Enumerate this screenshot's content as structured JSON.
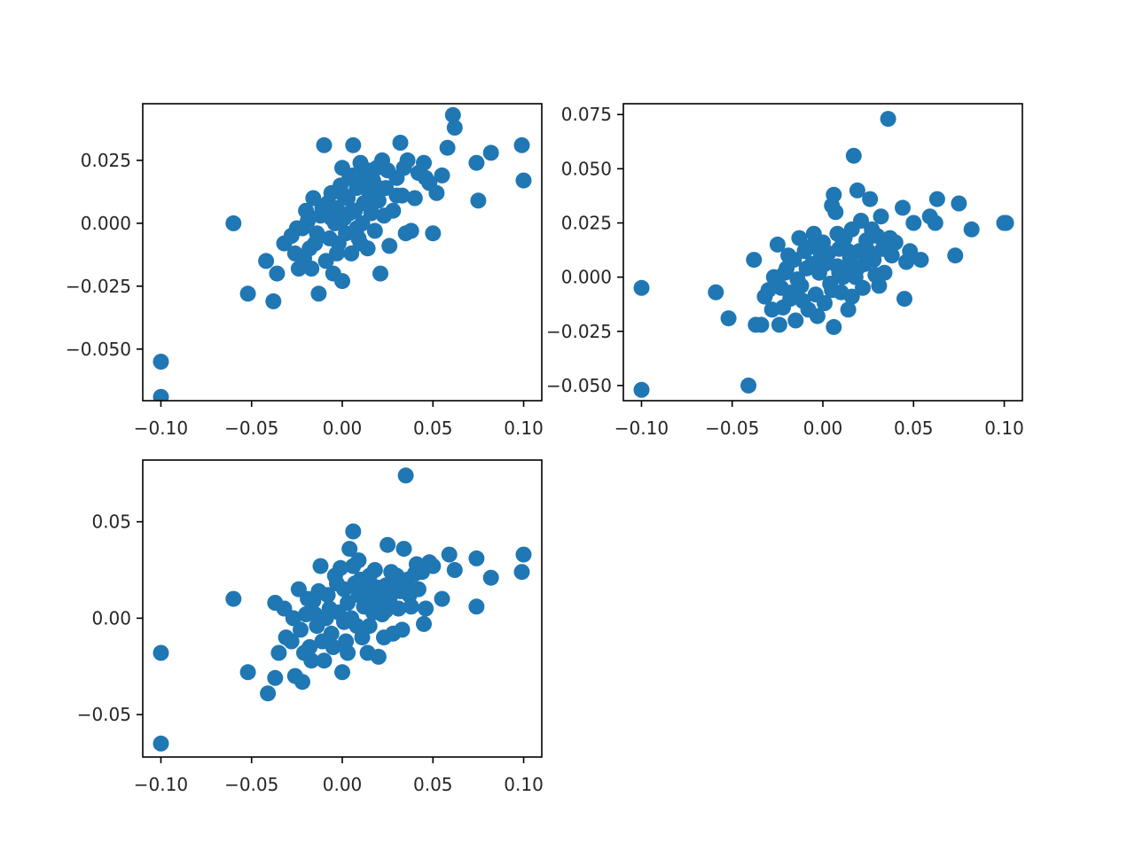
{
  "figure": {
    "background": "#ffffff"
  },
  "chart_data": [
    {
      "type": "scatter",
      "marker_color": "#1f77b4",
      "title": "",
      "xlabel": "",
      "ylabel": "",
      "xlim": [
        -0.11,
        0.11
      ],
      "ylim": [
        -0.0705,
        0.0475
      ],
      "xticks": [
        -0.1,
        -0.05,
        0.0,
        0.05,
        0.1
      ],
      "xtick_labels": [
        "−0.10",
        "−0.05",
        "0.00",
        "0.05",
        "0.10"
      ],
      "yticks": [
        -0.05,
        -0.025,
        0.0,
        0.025
      ],
      "ytick_labels": [
        "−0.050",
        "−0.025",
        "0.000",
        "0.025"
      ],
      "grid": false,
      "legend": false,
      "points": [
        [
          -0.1,
          -0.055
        ],
        [
          -0.1,
          -0.069
        ],
        [
          -0.06,
          0.0
        ],
        [
          -0.052,
          -0.028
        ],
        [
          -0.042,
          -0.015
        ],
        [
          -0.038,
          -0.031
        ],
        [
          -0.036,
          -0.02
        ],
        [
          -0.032,
          -0.008
        ],
        [
          -0.028,
          -0.005
        ],
        [
          -0.026,
          -0.012
        ],
        [
          -0.024,
          -0.018
        ],
        [
          -0.022,
          -0.002
        ],
        [
          -0.02,
          0.005
        ],
        [
          -0.018,
          -0.01
        ],
        [
          -0.016,
          0.01
        ],
        [
          -0.014,
          -0.004
        ],
        [
          -0.013,
          -0.028
        ],
        [
          -0.012,
          0.003
        ],
        [
          -0.01,
          0.031
        ],
        [
          -0.009,
          -0.015
        ],
        [
          -0.008,
          0.008
        ],
        [
          -0.007,
          -0.006
        ],
        [
          -0.006,
          0.012
        ],
        [
          -0.005,
          -0.02
        ],
        [
          -0.004,
          0.0
        ],
        [
          -0.003,
          0.006
        ],
        [
          -0.002,
          -0.008
        ],
        [
          -0.001,
          0.015
        ],
        [
          0.0,
          0.022
        ],
        [
          0.0,
          -0.023
        ],
        [
          0.001,
          0.002
        ],
        [
          0.002,
          -0.004
        ],
        [
          0.003,
          0.01
        ],
        [
          0.004,
          0.018
        ],
        [
          0.005,
          -0.012
        ],
        [
          0.006,
          0.031
        ],
        [
          0.007,
          0.005
        ],
        [
          0.008,
          0.014
        ],
        [
          0.009,
          -0.006
        ],
        [
          0.01,
          0.024
        ],
        [
          0.011,
          0.0
        ],
        [
          0.012,
          0.008
        ],
        [
          0.013,
          0.02
        ],
        [
          0.014,
          -0.01
        ],
        [
          0.015,
          0.012
        ],
        [
          0.016,
          0.004
        ],
        [
          0.017,
          0.017
        ],
        [
          0.018,
          -0.003
        ],
        [
          0.019,
          0.022
        ],
        [
          0.02,
          0.009
        ],
        [
          0.021,
          -0.02
        ],
        [
          0.022,
          0.025
        ],
        [
          0.024,
          0.014
        ],
        [
          0.026,
          -0.009
        ],
        [
          0.028,
          0.005
        ],
        [
          0.03,
          0.018
        ],
        [
          0.032,
          0.032
        ],
        [
          0.033,
          0.011
        ],
        [
          0.034,
          0.022
        ],
        [
          0.035,
          -0.004
        ],
        [
          0.036,
          0.025
        ],
        [
          0.038,
          -0.003
        ],
        [
          0.04,
          0.01
        ],
        [
          0.042,
          0.02
        ],
        [
          0.045,
          0.024
        ],
        [
          0.046,
          0.018
        ],
        [
          0.048,
          0.016
        ],
        [
          0.05,
          -0.004
        ],
        [
          0.052,
          0.012
        ],
        [
          0.055,
          0.019
        ],
        [
          0.058,
          0.03
        ],
        [
          0.061,
          0.043
        ],
        [
          0.062,
          0.038
        ],
        [
          0.074,
          0.024
        ],
        [
          0.075,
          0.009
        ],
        [
          0.082,
          0.028
        ],
        [
          0.099,
          0.031
        ],
        [
          0.1,
          0.017
        ],
        [
          -0.025,
          -0.002
        ],
        [
          -0.019,
          0.001
        ],
        [
          -0.015,
          -0.008
        ],
        [
          -0.011,
          0.006
        ],
        [
          -0.006,
          0.002
        ],
        [
          0.004,
          0.004
        ],
        [
          0.008,
          -0.002
        ],
        [
          0.012,
          0.016
        ],
        [
          0.016,
          0.007
        ],
        [
          0.02,
          0.014
        ],
        [
          0.023,
          0.003
        ],
        [
          -0.021,
          -0.014
        ],
        [
          -0.017,
          -0.018
        ],
        [
          -0.009,
          0.004
        ],
        [
          -0.003,
          -0.012
        ],
        [
          0.001,
          0.011
        ],
        [
          0.006,
          0.019
        ],
        [
          0.01,
          -0.008
        ],
        [
          0.014,
          0.021
        ],
        [
          0.018,
          0.013
        ],
        [
          0.025,
          0.021
        ],
        [
          0.03,
          0.011
        ]
      ]
    },
    {
      "type": "scatter",
      "marker_color": "#1f77b4",
      "title": "",
      "xlabel": "",
      "ylabel": "",
      "xlim": [
        -0.11,
        0.11
      ],
      "ylim": [
        -0.057,
        0.08
      ],
      "xticks": [
        -0.1,
        -0.05,
        0.0,
        0.05,
        0.1
      ],
      "xtick_labels": [
        "−0.10",
        "−0.05",
        "0.00",
        "0.05",
        "0.10"
      ],
      "yticks": [
        -0.05,
        -0.025,
        0.0,
        0.025,
        0.05,
        0.075
      ],
      "ytick_labels": [
        "−0.050",
        "−0.025",
        "0.000",
        "0.025",
        "0.050",
        "0.075"
      ],
      "grid": false,
      "legend": false,
      "points": [
        [
          -0.1,
          -0.005
        ],
        [
          -0.1,
          -0.052
        ],
        [
          -0.059,
          -0.007
        ],
        [
          -0.052,
          -0.019
        ],
        [
          -0.041,
          -0.05
        ],
        [
          -0.038,
          0.008
        ],
        [
          -0.037,
          -0.022
        ],
        [
          -0.034,
          -0.022
        ],
        [
          -0.032,
          -0.009
        ],
        [
          -0.03,
          -0.006
        ],
        [
          -0.027,
          0.0
        ],
        [
          -0.025,
          0.015
        ],
        [
          -0.024,
          -0.022
        ],
        [
          -0.022,
          -0.014
        ],
        [
          -0.02,
          0.004
        ],
        [
          -0.018,
          -0.01
        ],
        [
          -0.016,
          0.008
        ],
        [
          -0.015,
          -0.02
        ],
        [
          -0.013,
          0.018
        ],
        [
          -0.012,
          -0.004
        ],
        [
          -0.01,
          0.012
        ],
        [
          -0.008,
          -0.015
        ],
        [
          -0.006,
          0.006
        ],
        [
          -0.005,
          0.02
        ],
        [
          -0.004,
          -0.008
        ],
        [
          -0.002,
          0.002
        ],
        [
          0.0,
          0.016
        ],
        [
          0.001,
          -0.012
        ],
        [
          0.002,
          0.009
        ],
        [
          0.004,
          -0.003
        ],
        [
          0.005,
          0.033
        ],
        [
          0.006,
          0.038
        ],
        [
          0.006,
          -0.023
        ],
        [
          0.007,
          0.03
        ],
        [
          0.008,
          0.005
        ],
        [
          0.009,
          0.013
        ],
        [
          0.01,
          -0.007
        ],
        [
          0.012,
          0.018
        ],
        [
          0.013,
          0.003
        ],
        [
          0.014,
          -0.015
        ],
        [
          0.015,
          0.009
        ],
        [
          0.016,
          0.022
        ],
        [
          0.017,
          0.056
        ],
        [
          0.018,
          0.0
        ],
        [
          0.019,
          0.04
        ],
        [
          0.02,
          0.012
        ],
        [
          0.021,
          0.026
        ],
        [
          0.022,
          -0.005
        ],
        [
          0.024,
          0.017
        ],
        [
          0.026,
          0.036
        ],
        [
          0.028,
          0.008
        ],
        [
          0.03,
          0.019
        ],
        [
          0.031,
          -0.004
        ],
        [
          0.032,
          0.028
        ],
        [
          0.033,
          0.013
        ],
        [
          0.034,
          0.002
        ],
        [
          0.036,
          0.073
        ],
        [
          0.037,
          0.018
        ],
        [
          0.038,
          0.01
        ],
        [
          0.04,
          0.016
        ],
        [
          0.044,
          0.032
        ],
        [
          0.045,
          -0.01
        ],
        [
          0.046,
          0.007
        ],
        [
          0.048,
          0.012
        ],
        [
          0.05,
          0.025
        ],
        [
          0.054,
          0.008
        ],
        [
          0.059,
          0.028
        ],
        [
          0.062,
          0.025
        ],
        [
          0.063,
          0.036
        ],
        [
          0.073,
          0.01
        ],
        [
          0.075,
          0.034
        ],
        [
          0.082,
          0.022
        ],
        [
          0.1,
          0.025
        ],
        [
          0.101,
          0.025
        ],
        [
          -0.028,
          -0.015
        ],
        [
          -0.023,
          -0.005
        ],
        [
          -0.019,
          0.01
        ],
        [
          -0.014,
          -0.001
        ],
        [
          -0.009,
          0.004
        ],
        [
          -0.003,
          -0.018
        ],
        [
          0.003,
          0.011
        ],
        [
          0.008,
          0.02
        ],
        [
          0.011,
          0.0
        ],
        [
          0.016,
          -0.009
        ],
        [
          0.023,
          0.006
        ],
        [
          -0.021,
          0.002
        ],
        [
          -0.011,
          -0.011
        ],
        [
          -0.007,
          0.014
        ],
        [
          0.001,
          0.006
        ],
        [
          0.005,
          -0.006
        ],
        [
          0.011,
          0.016
        ],
        [
          0.019,
          0.004
        ],
        [
          0.025,
          0.012
        ],
        [
          0.029,
          0.001
        ],
        [
          -0.017,
          -0.007
        ],
        [
          -0.001,
          0.01
        ],
        [
          0.009,
          0.002
        ],
        [
          0.014,
          0.012
        ],
        [
          0.027,
          0.022
        ],
        [
          0.035,
          0.015
        ]
      ]
    },
    {
      "type": "scatter",
      "marker_color": "#1f77b4",
      "title": "",
      "xlabel": "",
      "ylabel": "",
      "xlim": [
        -0.11,
        0.11
      ],
      "ylim": [
        -0.072,
        0.082
      ],
      "xticks": [
        -0.1,
        -0.05,
        0.0,
        0.05,
        0.1
      ],
      "xtick_labels": [
        "−0.10",
        "−0.05",
        "0.00",
        "0.05",
        "0.10"
      ],
      "yticks": [
        -0.05,
        0.0,
        0.05
      ],
      "ytick_labels": [
        "−0.05",
        "0.00",
        "0.05"
      ],
      "grid": false,
      "legend": false,
      "points": [
        [
          -0.1,
          -0.018
        ],
        [
          -0.1,
          -0.065
        ],
        [
          -0.06,
          0.01
        ],
        [
          -0.052,
          -0.028
        ],
        [
          -0.041,
          -0.039
        ],
        [
          -0.037,
          0.008
        ],
        [
          -0.037,
          -0.031
        ],
        [
          -0.035,
          -0.018
        ],
        [
          -0.032,
          0.005
        ],
        [
          -0.031,
          -0.01
        ],
        [
          -0.028,
          -0.012
        ],
        [
          -0.026,
          -0.03
        ],
        [
          -0.024,
          0.015
        ],
        [
          -0.022,
          -0.033
        ],
        [
          -0.02,
          0.002
        ],
        [
          -0.018,
          -0.015
        ],
        [
          -0.016,
          0.009
        ],
        [
          -0.014,
          -0.004
        ],
        [
          -0.012,
          0.027
        ],
        [
          -0.01,
          -0.022
        ],
        [
          -0.008,
          0.012
        ],
        [
          -0.006,
          -0.008
        ],
        [
          -0.004,
          0.022
        ],
        [
          -0.002,
          0.003
        ],
        [
          0.0,
          -0.028
        ],
        [
          0.001,
          0.015
        ],
        [
          0.002,
          -0.012
        ],
        [
          0.003,
          0.008
        ],
        [
          0.004,
          0.036
        ],
        [
          0.006,
          0.045
        ],
        [
          0.006,
          0.027
        ],
        [
          0.008,
          -0.004
        ],
        [
          0.01,
          0.02
        ],
        [
          0.012,
          0.006
        ],
        [
          0.014,
          -0.018
        ],
        [
          0.016,
          0.012
        ],
        [
          0.018,
          0.025
        ],
        [
          0.02,
          -0.02
        ],
        [
          0.022,
          0.002
        ],
        [
          0.024,
          0.017
        ],
        [
          0.025,
          0.038
        ],
        [
          0.026,
          0.01
        ],
        [
          0.028,
          -0.008
        ],
        [
          0.03,
          0.022
        ],
        [
          0.032,
          0.014
        ],
        [
          0.033,
          -0.006
        ],
        [
          0.034,
          0.036
        ],
        [
          0.035,
          0.074
        ],
        [
          0.036,
          0.02
        ],
        [
          0.038,
          0.006
        ],
        [
          0.04,
          0.023
        ],
        [
          0.042,
          0.015
        ],
        [
          0.044,
          0.024
        ],
        [
          0.045,
          -0.003
        ],
        [
          0.046,
          0.005
        ],
        [
          0.048,
          0.029
        ],
        [
          0.05,
          0.027
        ],
        [
          0.055,
          0.01
        ],
        [
          0.059,
          0.033
        ],
        [
          0.062,
          0.025
        ],
        [
          0.074,
          0.031
        ],
        [
          0.074,
          0.006
        ],
        [
          0.082,
          0.021
        ],
        [
          0.1,
          0.033
        ],
        [
          0.099,
          0.024
        ],
        [
          -0.027,
          0.0
        ],
        [
          -0.023,
          -0.006
        ],
        [
          -0.019,
          0.01
        ],
        [
          -0.015,
          0.002
        ],
        [
          -0.011,
          -0.012
        ],
        [
          -0.007,
          0.005
        ],
        [
          -0.003,
          0.018
        ],
        [
          0.005,
          0.0
        ],
        [
          0.009,
          0.012
        ],
        [
          0.013,
          0.018
        ],
        [
          0.017,
          0.003
        ],
        [
          0.021,
          0.012
        ],
        [
          0.027,
          0.024
        ],
        [
          0.031,
          0.005
        ],
        [
          0.037,
          0.012
        ],
        [
          -0.021,
          -0.018
        ],
        [
          -0.013,
          0.014
        ],
        [
          -0.005,
          -0.015
        ],
        [
          0.001,
          -0.002
        ],
        [
          0.007,
          0.018
        ],
        [
          0.011,
          -0.01
        ],
        [
          0.015,
          0.022
        ],
        [
          0.019,
          0.008
        ],
        [
          0.023,
          -0.01
        ],
        [
          0.029,
          0.014
        ],
        [
          -0.017,
          -0.022
        ],
        [
          -0.009,
          0.0
        ],
        [
          -0.001,
          0.026
        ],
        [
          0.003,
          -0.018
        ],
        [
          0.009,
          0.03
        ],
        [
          0.015,
          -0.004
        ],
        [
          0.019,
          0.016
        ],
        [
          0.024,
          0.004
        ],
        [
          0.033,
          0.018
        ],
        [
          0.041,
          0.028
        ]
      ]
    }
  ]
}
